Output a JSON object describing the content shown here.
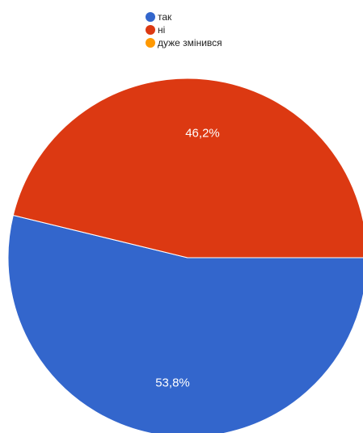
{
  "chart_data": {
    "type": "pie",
    "title": "",
    "slices": [
      {
        "label": "так",
        "value": 53.8,
        "display": "53,8%",
        "color": "#3366cc"
      },
      {
        "label": "ні",
        "value": 46.2,
        "display": "46,2%",
        "color": "#dc3912"
      },
      {
        "label": "дуже змінився",
        "value": 0,
        "display": "",
        "color": "#ff9900"
      }
    ],
    "legend_position": "top-center"
  }
}
